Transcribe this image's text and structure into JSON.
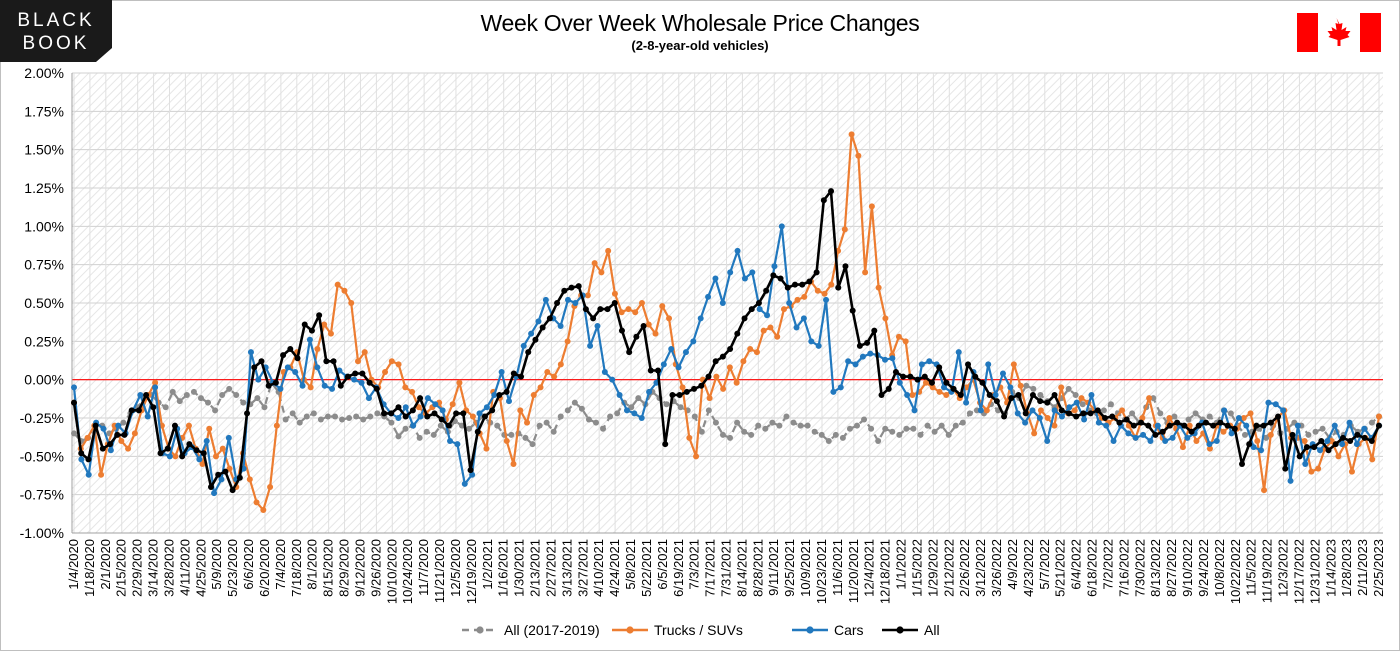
{
  "logo": {
    "line1": "BLACK",
    "line2": "BOOK",
    "bg_color": "#1a1a1a",
    "fg_color": "#ffffff"
  },
  "flag": {
    "name": "canada-flag",
    "color": "#ff0000"
  },
  "chart_data": {
    "type": "line",
    "title": "Week Over Week Wholesale Price Changes",
    "subtitle": "(2-8-year-old vehicles)",
    "ylim": [
      -1.0,
      2.0
    ],
    "yticks": [
      "2.00%",
      "1.75%",
      "1.50%",
      "1.25%",
      "1.00%",
      "0.75%",
      "0.50%",
      "0.25%",
      "0.00%",
      "-0.25%",
      "-0.50%",
      "-0.75%",
      "-1.00%"
    ],
    "xtick_labels": [
      "1/4/2020",
      "1/18/2020",
      "2/1/2020",
      "2/15/2020",
      "2/29/2020",
      "3/14/2020",
      "3/28/2020",
      "4/11/2020",
      "4/25/2020",
      "5/9/2020",
      "5/23/2020",
      "6/6/2020",
      "6/20/2020",
      "7/4/2020",
      "7/18/2020",
      "8/1/2020",
      "8/15/2020",
      "8/29/2020",
      "9/12/2020",
      "9/26/2020",
      "10/10/2020",
      "10/24/2020",
      "11/7/2020",
      "11/21/2020",
      "12/5/2020",
      "12/19/2020",
      "1/2/2021",
      "1/16/2021",
      "1/30/2021",
      "2/13/2021",
      "2/27/2021",
      "3/13/2021",
      "3/27/2021",
      "4/10/2021",
      "4/24/2021",
      "5/8/2021",
      "5/22/2021",
      "6/5/2021",
      "6/19/2021",
      "7/3/2021",
      "7/17/2021",
      "7/31/2021",
      "8/14/2021",
      "8/28/2021",
      "9/11/2021",
      "9/25/2021",
      "10/9/2021",
      "10/23/2021",
      "11/6/2021",
      "11/20/2021",
      "12/4/2021",
      "12/18/2021",
      "1/1/2022",
      "1/15/2022",
      "1/29/2022",
      "2/12/2022",
      "2/26/2022",
      "3/12/2022",
      "3/26/2022",
      "4/9/2022",
      "4/23/2022",
      "5/7/2022",
      "5/21/2022",
      "6/4/2022",
      "6/18/2022",
      "7/2/2022",
      "7/16/2022",
      "7/30/2022",
      "8/13/2022",
      "8/27/2022",
      "9/10/2022",
      "9/24/2022",
      "10/8/2022",
      "10/22/2022",
      "11/5/2022",
      "11/19/2022",
      "12/3/2022",
      "12/17/2022",
      "12/31/2022",
      "1/14/2023",
      "1/28/2023",
      "2/11/2023",
      "2/25/2023"
    ],
    "zero_line_color": "#ff0000",
    "grid": true,
    "legend_position": "bottom-center",
    "series": [
      {
        "name": "All (2017-2019)",
        "color": "#8c8c8c",
        "dashed": true,
        "values": [
          -0.35,
          -0.4,
          -0.38,
          -0.32,
          -0.3,
          -0.35,
          -0.32,
          -0.28,
          -0.22,
          -0.18,
          -0.12,
          -0.1,
          -0.15,
          -0.18,
          -0.08,
          -0.14,
          -0.1,
          -0.08,
          -0.12,
          -0.15,
          -0.2,
          -0.1,
          -0.06,
          -0.1,
          -0.15,
          -0.16,
          -0.12,
          -0.18,
          -0.02,
          -0.08,
          -0.26,
          -0.22,
          -0.28,
          -0.24,
          -0.22,
          -0.26,
          -0.24,
          -0.24,
          -0.26,
          -0.25,
          -0.24,
          -0.26,
          -0.24,
          -0.22,
          -0.24,
          -0.28,
          -0.37,
          -0.32,
          -0.3,
          -0.38,
          -0.34,
          -0.36,
          -0.3,
          -0.34,
          -0.27,
          -0.3,
          -0.32,
          -0.28,
          -0.24,
          -0.28,
          -0.3,
          -0.36,
          -0.36,
          -0.35,
          -0.38,
          -0.42,
          -0.3,
          -0.28,
          -0.34,
          -0.24,
          -0.2,
          -0.15,
          -0.19,
          -0.26,
          -0.28,
          -0.32,
          -0.24,
          -0.22,
          -0.15,
          -0.18,
          -0.12,
          -0.16,
          -0.08,
          -0.12,
          -0.16,
          -0.14,
          -0.18,
          -0.2,
          -0.24,
          -0.34,
          -0.2,
          -0.28,
          -0.36,
          -0.38,
          -0.28,
          -0.34,
          -0.36,
          -0.3,
          -0.32,
          -0.28,
          -0.3,
          -0.24,
          -0.28,
          -0.3,
          -0.3,
          -0.34,
          -0.36,
          -0.4,
          -0.36,
          -0.38,
          -0.32,
          -0.3,
          -0.26,
          -0.32,
          -0.4,
          -0.32,
          -0.34,
          -0.36,
          -0.32,
          -0.32,
          -0.36,
          -0.3,
          -0.34,
          -0.3,
          -0.36,
          -0.3,
          -0.28,
          -0.22,
          -0.2,
          -0.22,
          -0.16,
          -0.2,
          -0.22,
          -0.08,
          -0.12,
          -0.04,
          -0.06,
          -0.1,
          -0.14,
          -0.18,
          -0.12,
          -0.06,
          -0.1,
          -0.16,
          -0.2,
          -0.22,
          -0.2,
          -0.16,
          -0.22,
          -0.26,
          -0.22,
          -0.28,
          -0.18,
          -0.12,
          -0.22,
          -0.28,
          -0.24,
          -0.3,
          -0.26,
          -0.22,
          -0.26,
          -0.24,
          -0.28,
          -0.2,
          -0.22,
          -0.3,
          -0.36,
          -0.34,
          -0.32,
          -0.38,
          -0.3,
          -0.35,
          -0.32,
          -0.28,
          -0.3,
          -0.36,
          -0.34,
          -0.32,
          -0.38,
          -0.34,
          -0.36,
          -0.3,
          -0.34,
          -0.32,
          -0.28,
          -0.24
        ]
      },
      {
        "name": "Trucks / SUVs",
        "color": "#ed7d31",
        "dashed": false,
        "values": [
          -0.15,
          -0.45,
          -0.38,
          -0.3,
          -0.62,
          -0.42,
          -0.3,
          -0.4,
          -0.45,
          -0.35,
          -0.2,
          -0.1,
          -0.02,
          -0.3,
          -0.45,
          -0.5,
          -0.38,
          -0.3,
          -0.45,
          -0.55,
          -0.32,
          -0.5,
          -0.45,
          -0.58,
          -0.7,
          -0.48,
          -0.65,
          -0.8,
          -0.85,
          -0.7,
          -0.3,
          0.05,
          0.08,
          0.18,
          0.0,
          -0.05,
          0.2,
          0.36,
          0.3,
          0.62,
          0.58,
          0.5,
          0.12,
          0.18,
          0.0,
          -0.05,
          0.05,
          0.12,
          0.1,
          -0.05,
          -0.08,
          -0.18,
          -0.22,
          -0.18,
          -0.15,
          -0.26,
          -0.16,
          -0.02,
          -0.2,
          -0.24,
          -0.35,
          -0.45,
          -0.08,
          -0.12,
          -0.4,
          -0.55,
          -0.2,
          -0.28,
          -0.1,
          -0.05,
          0.05,
          0.02,
          0.1,
          0.25,
          0.48,
          0.55,
          0.55,
          0.76,
          0.7,
          0.84,
          0.56,
          0.44,
          0.46,
          0.44,
          0.5,
          0.36,
          0.3,
          0.48,
          0.4,
          0.1,
          -0.05,
          -0.38,
          -0.5,
          0.0,
          -0.12,
          0.02,
          -0.06,
          0.08,
          -0.02,
          0.12,
          0.2,
          0.18,
          0.32,
          0.34,
          0.28,
          0.46,
          0.48,
          0.52,
          0.54,
          0.64,
          0.58,
          0.56,
          0.62,
          0.84,
          0.98,
          1.6,
          1.46,
          0.7,
          1.13,
          0.6,
          0.4,
          0.16,
          0.28,
          0.25,
          -0.1,
          -0.08,
          -0.02,
          -0.05,
          -0.08,
          -0.1,
          -0.06,
          -0.12,
          -0.05,
          0.0,
          -0.15,
          -0.2,
          -0.1,
          -0.05,
          -0.15,
          0.1,
          -0.04,
          -0.22,
          -0.35,
          -0.2,
          -0.25,
          -0.3,
          -0.05,
          -0.22,
          -0.2,
          -0.12,
          -0.15,
          -0.2,
          -0.25,
          -0.28,
          -0.25,
          -0.2,
          -0.3,
          -0.38,
          -0.25,
          -0.12,
          -0.3,
          -0.38,
          -0.25,
          -0.32,
          -0.44,
          -0.3,
          -0.4,
          -0.35,
          -0.45,
          -0.3,
          -0.34,
          -0.3,
          -0.32,
          -0.25,
          -0.22,
          -0.4,
          -0.72,
          -0.36,
          -0.25,
          -0.2,
          -0.38,
          -0.38,
          -0.4,
          -0.6,
          -0.58,
          -0.45,
          -0.4,
          -0.5,
          -0.42,
          -0.6,
          -0.42,
          -0.38,
          -0.52,
          -0.24
        ]
      },
      {
        "name": "Cars",
        "color": "#2178be",
        "dashed": false,
        "values": [
          -0.05,
          -0.52,
          -0.62,
          -0.28,
          -0.32,
          -0.46,
          -0.3,
          -0.35,
          -0.2,
          -0.1,
          -0.24,
          -0.05,
          -0.48,
          -0.5,
          -0.32,
          -0.48,
          -0.44,
          -0.52,
          -0.4,
          -0.74,
          -0.65,
          -0.38,
          -0.65,
          -0.58,
          0.18,
          0.0,
          0.08,
          -0.02,
          -0.06,
          0.08,
          0.05,
          -0.04,
          0.26,
          0.08,
          -0.04,
          -0.06,
          0.06,
          0.02,
          0.0,
          -0.02,
          -0.12,
          -0.05,
          -0.16,
          -0.22,
          -0.25,
          -0.18,
          -0.3,
          -0.24,
          -0.12,
          -0.16,
          -0.2,
          -0.4,
          -0.42,
          -0.68,
          -0.62,
          -0.22,
          -0.18,
          -0.1,
          0.05,
          -0.14,
          0.02,
          0.22,
          0.3,
          0.38,
          0.52,
          0.4,
          0.35,
          0.52,
          0.5,
          0.55,
          0.22,
          0.35,
          0.05,
          0.0,
          -0.1,
          -0.2,
          -0.22,
          -0.25,
          -0.08,
          -0.02,
          0.1,
          0.2,
          0.08,
          0.18,
          0.25,
          0.4,
          0.54,
          0.66,
          0.5,
          0.7,
          0.84,
          0.66,
          0.7,
          0.46,
          0.42,
          0.74,
          1.0,
          0.5,
          0.34,
          0.4,
          0.25,
          0.22,
          0.52,
          -0.08,
          -0.05,
          0.12,
          0.1,
          0.15,
          0.17,
          0.16,
          0.13,
          0.14,
          -0.02,
          -0.1,
          -0.2,
          0.1,
          0.12,
          0.1,
          -0.05,
          -0.08,
          0.18,
          -0.15,
          0.05,
          -0.2,
          0.1,
          -0.1,
          0.04,
          -0.05,
          -0.22,
          -0.28,
          -0.2,
          -0.25,
          -0.4,
          -0.2,
          -0.24,
          -0.18,
          -0.15,
          -0.26,
          -0.1,
          -0.28,
          -0.3,
          -0.4,
          -0.3,
          -0.35,
          -0.38,
          -0.36,
          -0.4,
          -0.3,
          -0.4,
          -0.38,
          -0.3,
          -0.38,
          -0.35,
          -0.28,
          -0.42,
          -0.4,
          -0.2,
          -0.35,
          -0.25,
          -0.3,
          -0.44,
          -0.46,
          -0.15,
          -0.16,
          -0.2,
          -0.66,
          -0.3,
          -0.55,
          -0.42,
          -0.46,
          -0.4,
          -0.3,
          -0.42,
          -0.28,
          -0.42,
          -0.32,
          -0.38,
          -0.3
        ]
      },
      {
        "name": "All",
        "color": "#000000",
        "dashed": false,
        "values": [
          -0.15,
          -0.48,
          -0.52,
          -0.3,
          -0.45,
          -0.42,
          -0.36,
          -0.36,
          -0.2,
          -0.2,
          -0.1,
          -0.18,
          -0.48,
          -0.45,
          -0.3,
          -0.5,
          -0.42,
          -0.46,
          -0.48,
          -0.7,
          -0.62,
          -0.6,
          -0.72,
          -0.64,
          -0.22,
          0.08,
          0.12,
          -0.04,
          -0.02,
          0.16,
          0.2,
          0.14,
          0.36,
          0.32,
          0.42,
          0.12,
          0.12,
          -0.04,
          0.02,
          0.04,
          0.04,
          -0.02,
          -0.06,
          -0.22,
          -0.22,
          -0.18,
          -0.24,
          -0.2,
          -0.12,
          -0.24,
          -0.22,
          -0.26,
          -0.3,
          -0.22,
          -0.22,
          -0.59,
          -0.34,
          -0.24,
          -0.2,
          -0.1,
          -0.08,
          0.04,
          0.02,
          0.18,
          0.26,
          0.34,
          0.4,
          0.5,
          0.58,
          0.6,
          0.61,
          0.46,
          0.4,
          0.46,
          0.46,
          0.5,
          0.32,
          0.18,
          0.28,
          0.35,
          0.06,
          0.06,
          -0.42,
          -0.1,
          -0.1,
          -0.08,
          -0.06,
          -0.04,
          0.02,
          0.12,
          0.15,
          0.2,
          0.3,
          0.4,
          0.46,
          0.5,
          0.58,
          0.68,
          0.66,
          0.6,
          0.62,
          0.62,
          0.64,
          0.7,
          1.17,
          1.23,
          0.6,
          0.74,
          0.45,
          0.22,
          0.24,
          0.32,
          -0.1,
          -0.06,
          0.05,
          0.02,
          0.02,
          0.0,
          0.02,
          -0.02,
          0.08,
          -0.02,
          -0.06,
          -0.1,
          0.1,
          0.02,
          -0.02,
          -0.1,
          -0.14,
          -0.24,
          -0.12,
          -0.1,
          -0.22,
          -0.1,
          -0.14,
          -0.15,
          -0.1,
          -0.2,
          -0.22,
          -0.24,
          -0.22,
          -0.22,
          -0.2,
          -0.25,
          -0.24,
          -0.28,
          -0.26,
          -0.3,
          -0.28,
          -0.3,
          -0.36,
          -0.34,
          -0.3,
          -0.28,
          -0.3,
          -0.34,
          -0.3,
          -0.28,
          -0.3,
          -0.28,
          -0.3,
          -0.32,
          -0.55,
          -0.42,
          -0.3,
          -0.3,
          -0.28,
          -0.24,
          -0.58,
          -0.36,
          -0.5,
          -0.44,
          -0.44,
          -0.4,
          -0.46,
          -0.42,
          -0.38,
          -0.4,
          -0.36,
          -0.38,
          -0.4,
          -0.3
        ]
      }
    ]
  }
}
